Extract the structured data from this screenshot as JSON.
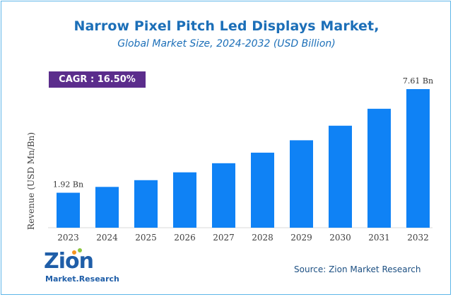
{
  "header": {
    "title": "Narrow Pixel Pitch Led Displays Market,",
    "subtitle": "Global Market Size, 2024-2032 (USD Billion)"
  },
  "badge": {
    "cagr": "CAGR :  16.50%"
  },
  "source": "Source: Zion Market Research",
  "logo": {
    "word": "Zion",
    "subtitle": "Market.Research"
  },
  "colors": {
    "bar": "#0f82f5",
    "title": "#1c6fb8",
    "badge": "#5b2d8c",
    "border": "#5fb6e8"
  },
  "chart_data": {
    "type": "bar",
    "categories": [
      "2023",
      "2024",
      "2025",
      "2026",
      "2027",
      "2028",
      "2029",
      "2030",
      "2031",
      "2032"
    ],
    "values": [
      1.92,
      2.24,
      2.61,
      3.04,
      3.54,
      4.12,
      4.8,
      5.6,
      6.53,
      7.61
    ],
    "data_labels": [
      {
        "index": 0,
        "text": "1.92 Bn"
      },
      {
        "index": 9,
        "text": "7.61 Bn"
      }
    ],
    "ylabel": "Revenue (USD Mn/Bn)",
    "xlabel": "",
    "ylim": [
      0,
      7.61
    ],
    "grid": false,
    "legend": "none"
  }
}
